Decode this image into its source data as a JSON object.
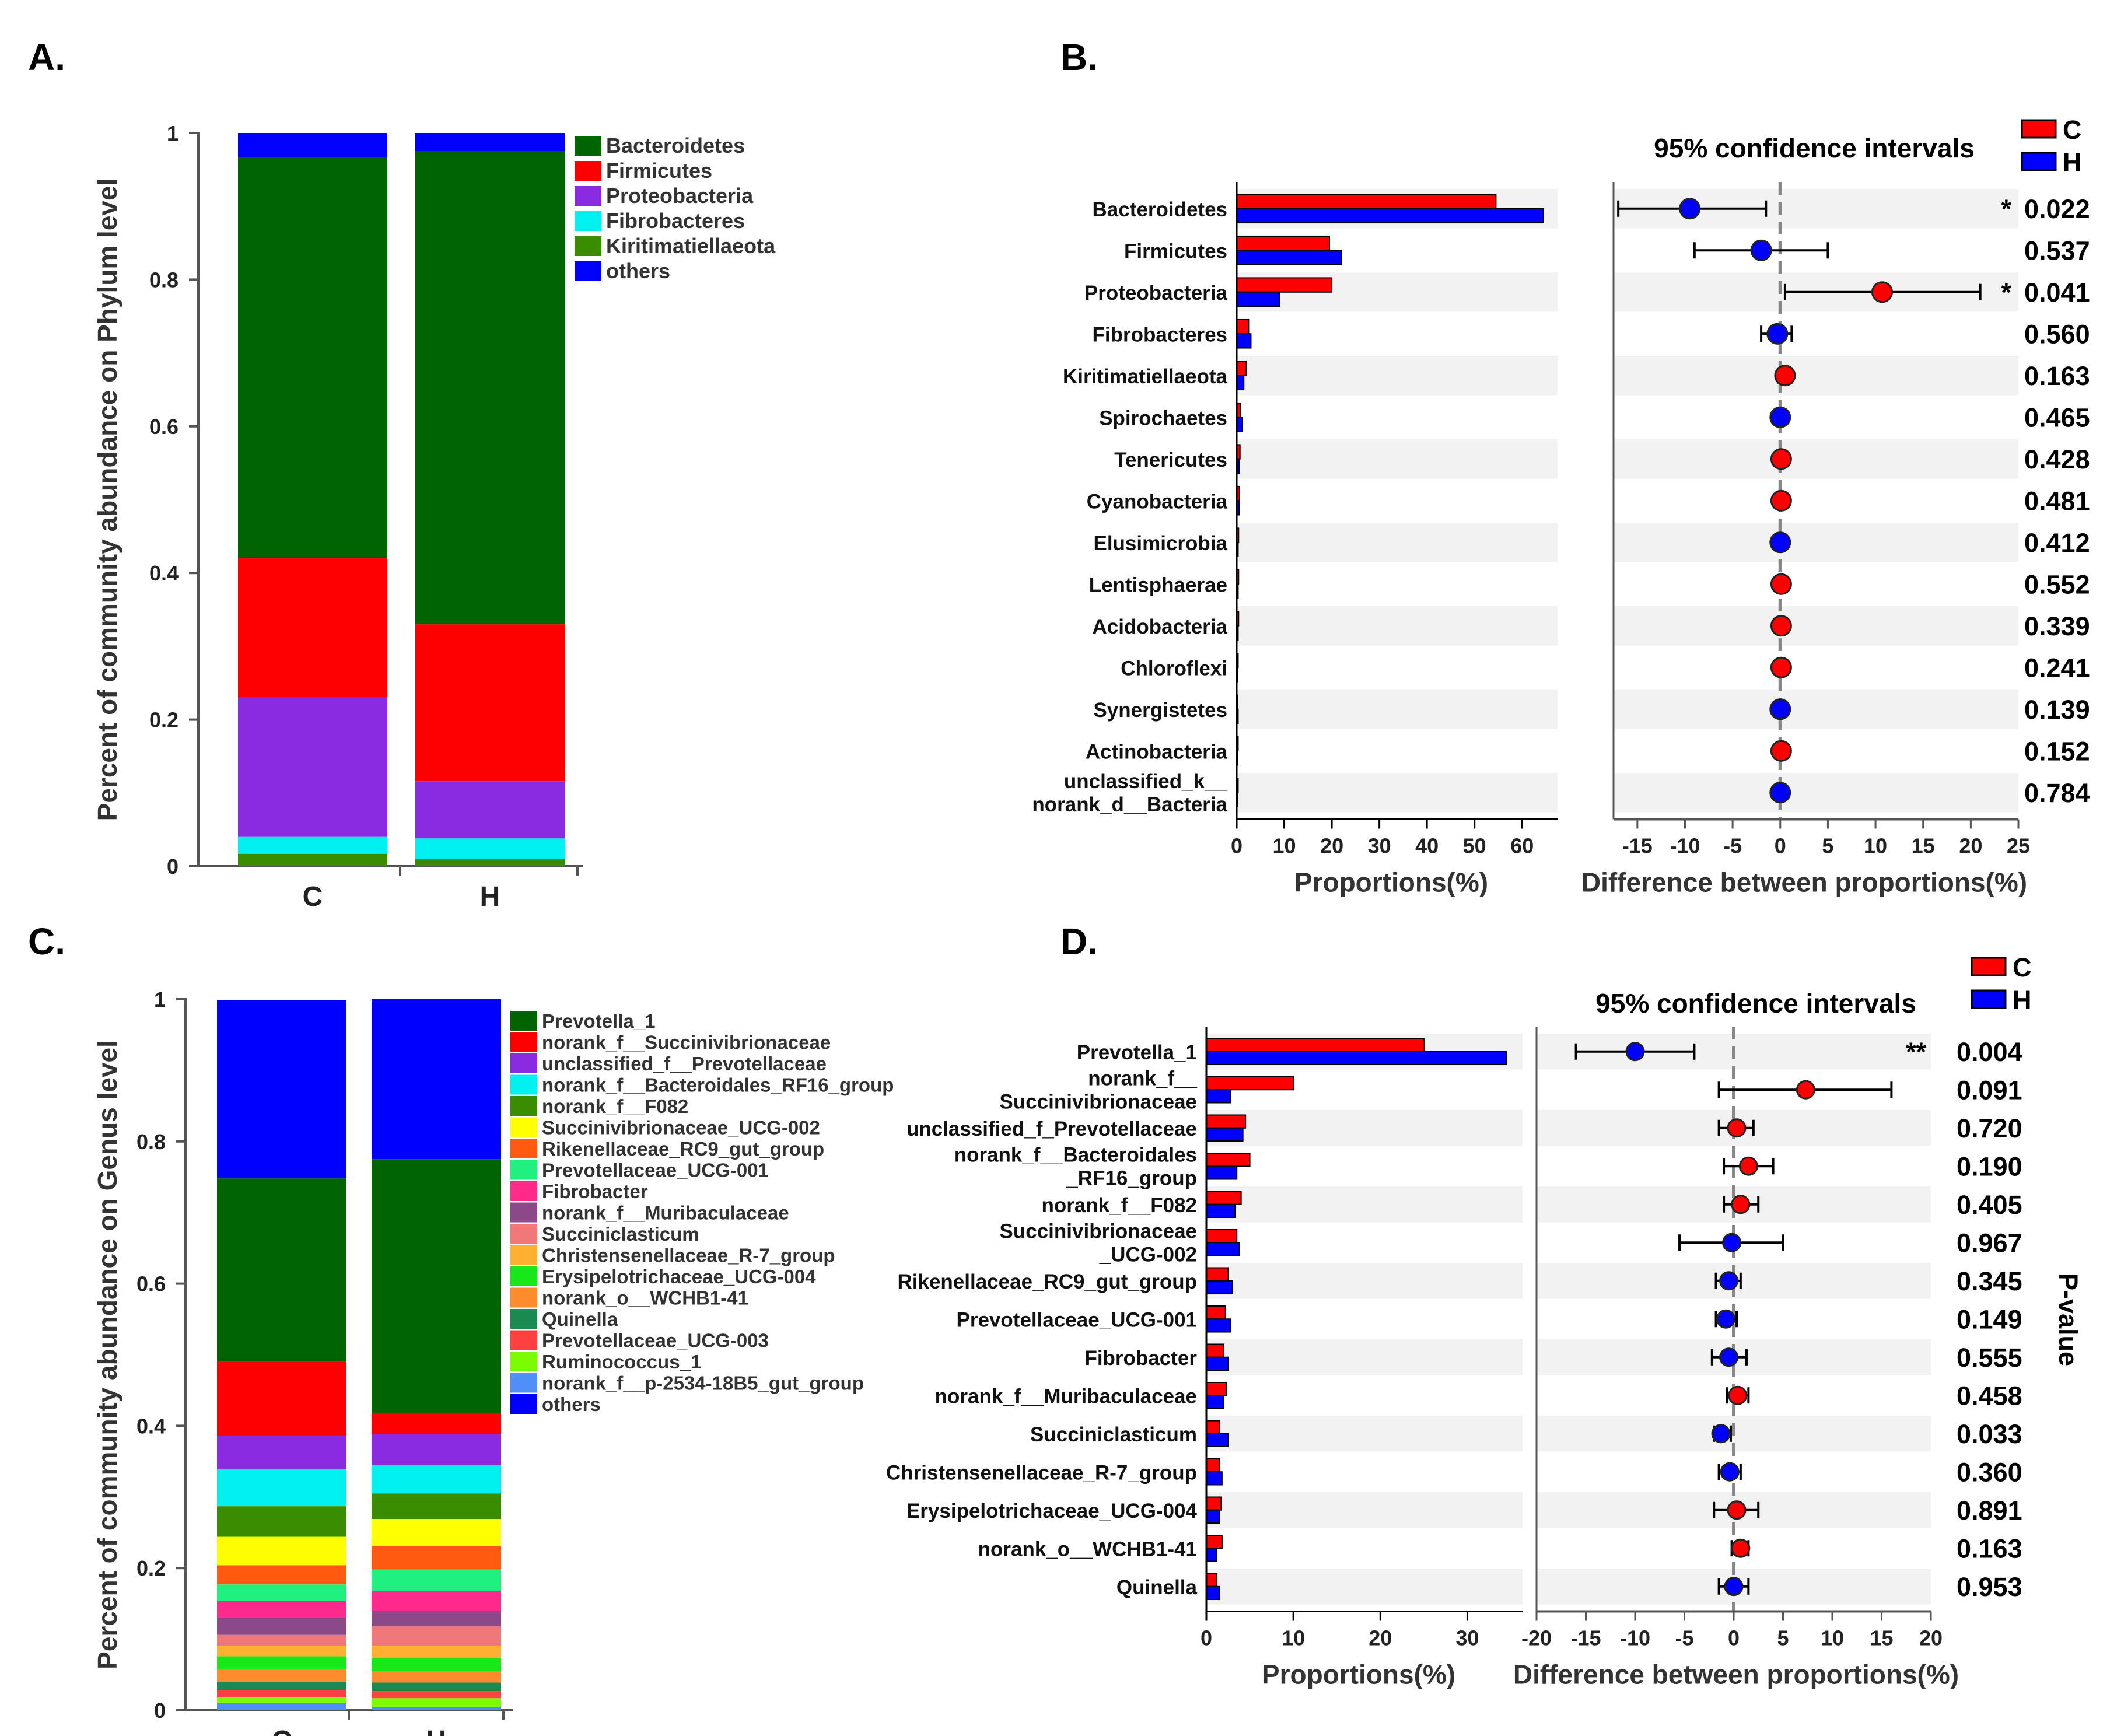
{
  "figure": {
    "panel_labels": [
      "A.",
      "B.",
      "C.",
      "D."
    ]
  },
  "colors": {
    "group_C": "#ff0000",
    "group_H": "#0000ff",
    "stripe": "#f2f2f2",
    "axis": "#555555"
  },
  "chart_data": [
    {
      "id": "A",
      "type": "bar",
      "stacked": true,
      "categories": [
        "C",
        "H"
      ],
      "ylabel": "Percent of community abundance on Phylum level",
      "ylim": [
        0,
        1
      ],
      "yticks": [
        "0",
        "0.2",
        "0.4",
        "0.6",
        "0.8",
        "1"
      ],
      "legend_position": "right",
      "series": [
        {
          "name": "Kiritimatiellaeota",
          "color": "#3a8c00",
          "values": [
            0.017,
            0.01
          ]
        },
        {
          "name": "Fibrobacteres",
          "color": "#00f0f0",
          "values": [
            0.023,
            0.028
          ]
        },
        {
          "name": "Proteobacteria",
          "color": "#8a2be2",
          "values": [
            0.19,
            0.078
          ]
        },
        {
          "name": "Firmicutes",
          "color": "#ff0000",
          "values": [
            0.19,
            0.214
          ]
        },
        {
          "name": "Bacteroidetes",
          "color": "#006400",
          "values": [
            0.546,
            0.645
          ]
        },
        {
          "name": "others",
          "color": "#0000ff",
          "values": [
            0.034,
            0.025
          ]
        }
      ],
      "legend_order": [
        "Bacteroidetes",
        "Firmicutes",
        "Proteobacteria",
        "Fibrobacteres",
        "Kiritimatiellaeota",
        "others"
      ]
    },
    {
      "id": "B",
      "type": "bar",
      "title": "95% confidence intervals",
      "legend": [
        "C",
        "H"
      ],
      "categories": [
        "Bacteroidetes",
        "Firmicutes",
        "Proteobacteria",
        "Fibrobacteres",
        "Kiritimatiellaeota",
        "Spirochaetes",
        "Tenericutes",
        "Cyanobacteria",
        "Elusimicrobia",
        "Lentisphaerae",
        "Acidobacteria",
        "Chloroflexi",
        "Synergistetes",
        "Actinobacteria",
        "unclassified_k__ norank_d__Bacteria"
      ],
      "proportions_C": [
        54.5,
        19.5,
        20.0,
        2.5,
        2.0,
        0.8,
        0.7,
        0.6,
        0.4,
        0.4,
        0.4,
        0.3,
        0.2,
        0.3,
        0.3
      ],
      "proportions_H": [
        64.5,
        22.0,
        9.0,
        3.0,
        1.5,
        1.2,
        0.5,
        0.5,
        0.3,
        0.3,
        0.3,
        0.2,
        0.3,
        0.2,
        0.2
      ],
      "difference": [
        -9.5,
        -2.0,
        10.7,
        -0.3,
        0.5,
        0.0,
        0.1,
        0.1,
        0.0,
        0.1,
        0.1,
        0.1,
        0.0,
        0.1,
        0.0
      ],
      "ci_low": [
        -17.0,
        -9.0,
        0.5,
        -2.0,
        -0.2,
        -0.3,
        -0.3,
        -0.3,
        -0.2,
        -0.3,
        -0.3,
        -0.3,
        -0.2,
        -0.3,
        -0.3
      ],
      "ci_high": [
        -1.5,
        5.0,
        21.0,
        1.2,
        1.2,
        0.3,
        0.4,
        0.4,
        0.2,
        0.4,
        0.4,
        0.4,
        0.2,
        0.4,
        0.3
      ],
      "higher_group": [
        "H",
        "H",
        "C",
        "H",
        "C",
        "H",
        "C",
        "C",
        "H",
        "C",
        "C",
        "C",
        "H",
        "C",
        "H"
      ],
      "significance": [
        "*",
        "",
        "*",
        "",
        "",
        "",
        "",
        "",
        "",
        "",
        "",
        "",
        "",
        "",
        ""
      ],
      "p_values": [
        "0.022",
        "0.537",
        "0.041",
        "0.560",
        "0.163",
        "0.465",
        "0.428",
        "0.481",
        "0.412",
        "0.552",
        "0.339",
        "0.241",
        "0.139",
        "0.152",
        "0.784"
      ],
      "xlabel_left": "Proportions(%)",
      "xticks_left": [
        "0",
        "10",
        "20",
        "30",
        "40",
        "50",
        "60"
      ],
      "xlim_left": [
        0,
        65
      ],
      "xlabel_right": "Difference between proportions(%)",
      "xticks_right": [
        "-15",
        "-10",
        "-5",
        "0",
        "5",
        "10",
        "15",
        "20",
        "25"
      ],
      "xlim_right": [
        -17.5,
        25
      ]
    },
    {
      "id": "C",
      "type": "bar",
      "stacked": true,
      "categories": [
        "C",
        "H"
      ],
      "ylabel": "Percent of community abundance on Genus level",
      "ylim": [
        0,
        1
      ],
      "yticks": [
        "0",
        "0.2",
        "0.4",
        "0.6",
        "0.8",
        "1"
      ],
      "legend_position": "right",
      "series": [
        {
          "name": "norank_f__p-2534-18B5_gut_group",
          "color": "#4f8ff7",
          "values": [
            0.01,
            0.005
          ]
        },
        {
          "name": "Ruminococcus_1",
          "color": "#7cfc00",
          "values": [
            0.008,
            0.012
          ]
        },
        {
          "name": "Prevotellaceae_UCG-003",
          "color": "#ff4040",
          "values": [
            0.01,
            0.01
          ]
        },
        {
          "name": "Quinella",
          "color": "#1a8a50",
          "values": [
            0.012,
            0.012
          ]
        },
        {
          "name": "norank_o__WCHB1-41",
          "color": "#ff8c2a",
          "values": [
            0.018,
            0.016
          ]
        },
        {
          "name": "Erysipelotrichaceae_UCG-004",
          "color": "#18e818",
          "values": [
            0.018,
            0.018
          ]
        },
        {
          "name": "Christensenellaceae_R-7_group",
          "color": "#ffb030",
          "values": [
            0.015,
            0.018
          ]
        },
        {
          "name": "Succiniclasticum",
          "color": "#f07878",
          "values": [
            0.015,
            0.027
          ]
        },
        {
          "name": "norank_f__Muribaculaceae",
          "color": "#8a4a8a",
          "values": [
            0.025,
            0.022
          ]
        },
        {
          "name": "Fibrobacter",
          "color": "#ff2a8a",
          "values": [
            0.023,
            0.028
          ]
        },
        {
          "name": "Prevotellaceae_UCG-001",
          "color": "#20f080",
          "values": [
            0.023,
            0.03
          ]
        },
        {
          "name": "Rikenellaceae_RC9_gut_group",
          "color": "#ff5a10",
          "values": [
            0.027,
            0.033
          ]
        },
        {
          "name": "Succinivibrionaceae_UCG-002",
          "color": "#ffff00",
          "values": [
            0.04,
            0.038
          ]
        },
        {
          "name": "norank_f__F082",
          "color": "#3a8c00",
          "values": [
            0.043,
            0.036
          ]
        },
        {
          "name": "norank_f__Bacteroidales_RF16_group",
          "color": "#00f0f0",
          "values": [
            0.052,
            0.04
          ]
        },
        {
          "name": "unclassified_f__Prevotellaceae",
          "color": "#8a2be2",
          "values": [
            0.047,
            0.043
          ]
        },
        {
          "name": "norank_f__Succinivibrionaceae",
          "color": "#ff0000",
          "values": [
            0.104,
            0.03
          ]
        },
        {
          "name": "Prevotella_1",
          "color": "#006400",
          "values": [
            0.258,
            0.357
          ]
        },
        {
          "name": "others",
          "color": "#0000ff",
          "values": [
            0.251,
            0.225
          ]
        }
      ],
      "legend_order": [
        "Prevotella_1",
        "norank_f__Succinivibrionaceae",
        "unclassified_f__Prevotellaceae",
        "norank_f__Bacteroidales_RF16_group",
        "norank_f__F082",
        "Succinivibrionaceae_UCG-002",
        "Rikenellaceae_RC9_gut_group",
        "Prevotellaceae_UCG-001",
        "Fibrobacter",
        "norank_f__Muribaculaceae",
        "Succiniclasticum",
        "Christensenellaceae_R-7_group",
        "Erysipelotrichaceae_UCG-004",
        "norank_o__WCHB1-41",
        "Quinella",
        "Prevotellaceae_UCG-003",
        "Ruminococcus_1",
        "norank_f__p-2534-18B5_gut_group",
        "others"
      ]
    },
    {
      "id": "D",
      "type": "bar",
      "title": "95% confidence intervals",
      "legend": [
        "C",
        "H"
      ],
      "categories": [
        "Prevotella_1",
        "norank_f__ Succinivibrionaceae",
        "unclassified_f_Prevotellaceae",
        "norank_f__Bacteroidales _RF16_group",
        "norank_f__F082",
        "Succinivibrionaceae _UCG-002",
        "Rikenellaceae_RC9_gut_group",
        "Prevotellaceae_UCG-001",
        "Fibrobacter",
        "norank_f__Muribaculaceae",
        "Succiniclasticum",
        "Christensenellaceae_R-7_group",
        "Erysipelotrichaceae_UCG-004",
        "norank_o__WCHB1-41",
        "Quinella"
      ],
      "proportions_C": [
        25.0,
        10.0,
        4.5,
        5.0,
        4.0,
        3.5,
        2.5,
        2.2,
        2.0,
        2.3,
        1.5,
        1.5,
        1.7,
        1.8,
        1.2
      ],
      "proportions_H": [
        34.5,
        2.8,
        4.2,
        3.5,
        3.3,
        3.8,
        3.0,
        2.8,
        2.5,
        2.0,
        2.5,
        1.8,
        1.5,
        1.2,
        1.5
      ],
      "difference": [
        -10.0,
        7.3,
        0.3,
        1.5,
        0.7,
        -0.2,
        -0.5,
        -0.8,
        -0.5,
        0.4,
        -1.3,
        -0.4,
        0.3,
        0.7,
        0.0
      ],
      "ci_low": [
        -16.0,
        -1.5,
        -1.5,
        -1.0,
        -1.0,
        -5.5,
        -1.8,
        -1.8,
        -2.2,
        -0.7,
        -2.0,
        -1.5,
        -2.0,
        -0.2,
        -1.5
      ],
      "ci_high": [
        -4.0,
        16.0,
        2.0,
        4.0,
        2.5,
        5.0,
        0.7,
        0.3,
        1.3,
        1.5,
        -0.3,
        0.7,
        2.5,
        1.5,
        1.5
      ],
      "higher_group": [
        "H",
        "C",
        "C",
        "C",
        "C",
        "H",
        "H",
        "H",
        "H",
        "C",
        "H",
        "H",
        "C",
        "C",
        "H"
      ],
      "significance": [
        "**",
        "",
        "",
        "",
        "",
        "",
        "",
        "",
        "",
        "",
        "",
        "",
        "",
        "",
        ""
      ],
      "p_values": [
        "0.004",
        "0.091",
        "0.720",
        "0.190",
        "0.405",
        "0.967",
        "0.345",
        "0.149",
        "0.555",
        "0.458",
        "0.033",
        "0.360",
        "0.891",
        "0.163",
        "0.953"
      ],
      "xlabel_left": "Proportions(%)",
      "xticks_left": [
        "0",
        "10",
        "20",
        "30"
      ],
      "xlim_left": [
        0,
        35
      ],
      "xlabel_right": "Difference between proportions(%)",
      "xticks_right": [
        "-20",
        "-15",
        "-10",
        "-5",
        "0",
        "5",
        "10",
        "15",
        "20"
      ],
      "xlim_right": [
        -20,
        20
      ],
      "p_axis_label": "P-value"
    }
  ]
}
